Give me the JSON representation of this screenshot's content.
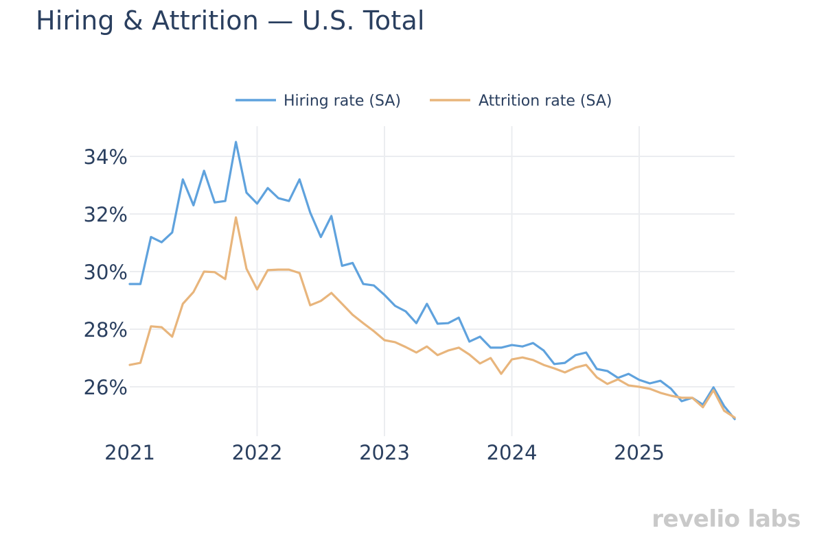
{
  "chart_data": {
    "type": "line",
    "title": "Hiring & Attrition — U.S. Total",
    "xlabel": "",
    "ylabel": "",
    "x_start": "2021-01",
    "x_frequency": "monthly",
    "x": [
      "2021-01",
      "2021-02",
      "2021-03",
      "2021-04",
      "2021-05",
      "2021-06",
      "2021-07",
      "2021-08",
      "2021-09",
      "2021-10",
      "2021-11",
      "2021-12",
      "2022-01",
      "2022-02",
      "2022-03",
      "2022-04",
      "2022-05",
      "2022-06",
      "2022-07",
      "2022-08",
      "2022-09",
      "2022-10",
      "2022-11",
      "2022-12",
      "2023-01",
      "2023-02",
      "2023-03",
      "2023-04",
      "2023-05",
      "2023-06",
      "2023-07",
      "2023-08",
      "2023-09",
      "2023-10",
      "2023-11",
      "2023-12",
      "2024-01",
      "2024-02",
      "2024-03",
      "2024-04",
      "2024-05",
      "2024-06",
      "2024-07",
      "2024-08",
      "2024-09",
      "2024-10",
      "2024-11",
      "2024-12",
      "2025-01",
      "2025-02",
      "2025-03",
      "2025-04",
      "2025-05",
      "2025-06",
      "2025-07",
      "2025-08",
      "2025-09",
      "2025-10"
    ],
    "x_tick_labels": [
      "2021",
      "2022",
      "2023",
      "2024",
      "2025"
    ],
    "y_tick_values": [
      26,
      28,
      30,
      32,
      34
    ],
    "y_tick_labels": [
      "26%",
      "28%",
      "30%",
      "32%",
      "34%"
    ],
    "ylim": [
      24.9,
      35.1
    ],
    "grid": true,
    "legend_position": "top-center",
    "series": [
      {
        "name": "Hiring rate (SA)",
        "color": "#5fa2dd",
        "values": [
          29.57,
          29.57,
          31.2,
          31.02,
          31.36,
          33.2,
          32.3,
          33.5,
          32.4,
          32.45,
          34.5,
          32.74,
          32.36,
          32.9,
          32.55,
          32.45,
          33.2,
          32.05,
          31.2,
          31.93,
          30.2,
          30.3,
          29.57,
          29.52,
          29.19,
          28.81,
          28.62,
          28.21,
          28.88,
          28.19,
          28.21,
          28.4,
          27.57,
          27.74,
          27.36,
          27.36,
          27.45,
          27.4,
          27.52,
          27.26,
          26.79,
          26.83,
          27.1,
          27.19,
          26.62,
          26.55,
          26.31,
          26.45,
          26.24,
          26.12,
          26.21,
          25.93,
          25.5,
          25.62,
          25.38,
          25.98,
          25.33,
          24.88
        ]
      },
      {
        "name": "Attrition rate (SA)",
        "color": "#e8b57c",
        "values": [
          26.76,
          26.83,
          28.1,
          28.07,
          27.74,
          28.88,
          29.29,
          30.0,
          29.98,
          29.74,
          31.88,
          30.1,
          29.38,
          30.05,
          30.07,
          30.07,
          29.95,
          28.83,
          28.98,
          29.26,
          28.88,
          28.5,
          28.21,
          27.93,
          27.62,
          27.55,
          27.38,
          27.19,
          27.4,
          27.1,
          27.26,
          27.36,
          27.12,
          26.81,
          27.0,
          26.45,
          26.95,
          27.02,
          26.93,
          26.76,
          26.64,
          26.5,
          26.67,
          26.76,
          26.33,
          26.1,
          26.26,
          26.05,
          26.0,
          25.93,
          25.79,
          25.69,
          25.62,
          25.62,
          25.29,
          25.88,
          25.17,
          24.93
        ]
      }
    ]
  },
  "watermark": "revelio labs"
}
